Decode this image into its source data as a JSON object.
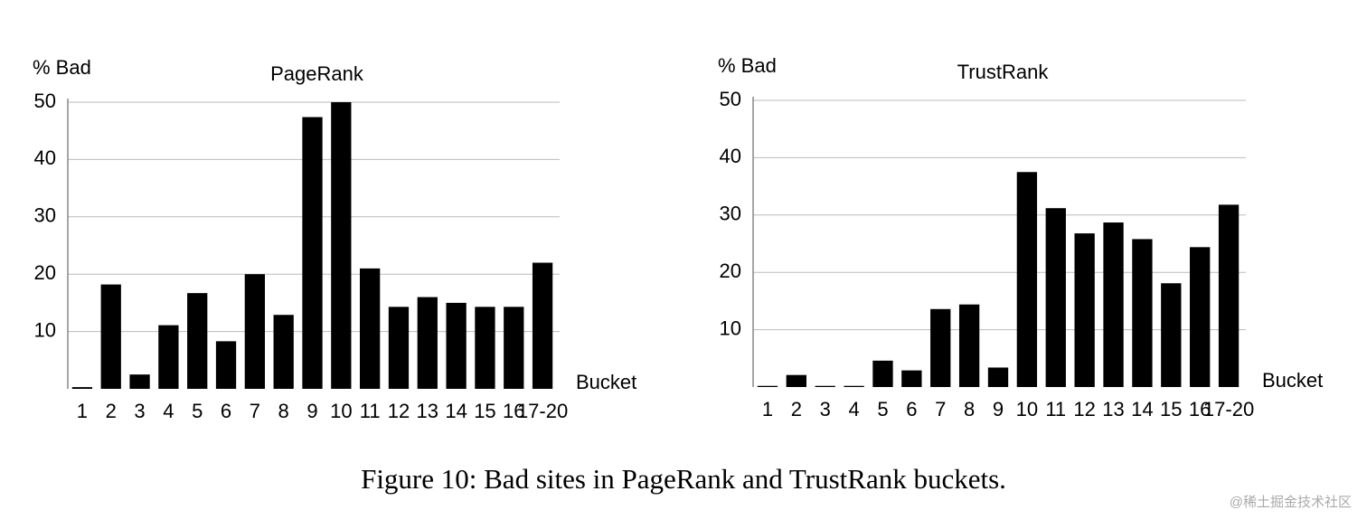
{
  "chart_data": [
    {
      "type": "bar",
      "title": "PageRank",
      "y_label": "% Bad",
      "x_label": "Bucket",
      "categories": [
        "1",
        "2",
        "3",
        "4",
        "5",
        "6",
        "7",
        "8",
        "9",
        "10",
        "11",
        "12",
        "13",
        "14",
        "15",
        "16",
        "17-20"
      ],
      "values": [
        0.3,
        18.2,
        2.5,
        11.1,
        16.7,
        8.3,
        20,
        12.9,
        47.4,
        50,
        21,
        14.3,
        16,
        15,
        14.3,
        14.3,
        22
      ],
      "color": "#000000",
      "ylim": [
        0,
        50
      ],
      "yticks": [
        10,
        20,
        30,
        40,
        50
      ],
      "grid": true
    },
    {
      "type": "bar",
      "title": "TrustRank",
      "y_label": "% Bad",
      "x_label": "Bucket",
      "categories": [
        "1",
        "2",
        "3",
        "4",
        "5",
        "6",
        "7",
        "8",
        "9",
        "10",
        "11",
        "12",
        "13",
        "14",
        "15",
        "16",
        "17-20"
      ],
      "values": [
        0.2,
        2.1,
        0.2,
        0.2,
        4.6,
        2.9,
        13.6,
        14.4,
        3.4,
        37.5,
        31.2,
        26.8,
        28.7,
        25.8,
        18.1,
        24.4,
        31.8
      ],
      "color": "#000000",
      "ylim": [
        0,
        50
      ],
      "yticks": [
        10,
        20,
        30,
        40,
        50
      ],
      "grid": true
    }
  ],
  "caption": "Figure 10: Bad sites in PageRank and TrustRank buckets.",
  "watermark": "@稀土掘金技术社区"
}
